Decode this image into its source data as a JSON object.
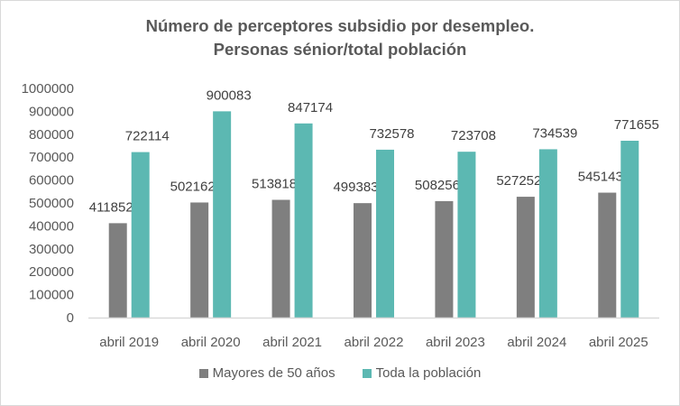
{
  "chart_data": {
    "type": "bar",
    "title_line1": "Número de perceptores subsidio por desempleo.",
    "title_line2": "Personas sénior/total población",
    "categories": [
      "abril 2019",
      "abril 2020",
      "abril 2021",
      "abril 2022",
      "abril 2023",
      "abril 2024",
      "abril 2025"
    ],
    "series": [
      {
        "name": "Mayores de 50 años",
        "color": "#7f7f7f",
        "values": [
          411852,
          502162,
          513818,
          499383,
          508256,
          527252,
          545143
        ]
      },
      {
        "name": "Toda la población",
        "color": "#5cb8b2",
        "values": [
          722114,
          900083,
          847174,
          732578,
          723708,
          734539,
          771655
        ]
      }
    ],
    "ylim": [
      0,
      1000000
    ],
    "yticks": [
      0,
      100000,
      200000,
      300000,
      400000,
      500000,
      600000,
      700000,
      800000,
      900000,
      1000000
    ],
    "xlabel": "",
    "ylabel": "",
    "grid": false,
    "legend_position": "bottom"
  }
}
